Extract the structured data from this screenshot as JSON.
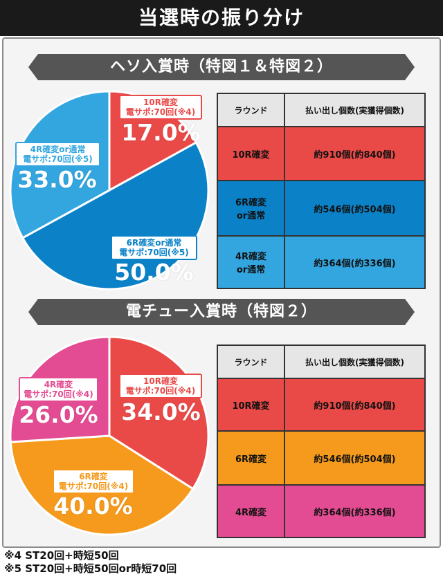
{
  "page_title": "当選時の振り分け",
  "colors": {
    "red": "#e94a48",
    "blue_dark": "#0b82c8",
    "blue_light": "#33a6e0",
    "pink": "#e34c92",
    "orange": "#f59a1c"
  },
  "section1": {
    "heading": "ヘソ入賞時（特図１＆特図２）",
    "table": {
      "headers": [
        "ラウンド",
        "払い出し個数(実獲得個数)"
      ],
      "rows": [
        {
          "round": [
            "10R確変"
          ],
          "payout": "約910個(約840個)"
        },
        {
          "round": [
            "6R確変",
            "or通常"
          ],
          "payout": "約546個(約504個)"
        },
        {
          "round": [
            "4R確変",
            "or通常"
          ],
          "payout": "約364個(約336個)"
        }
      ]
    }
  },
  "section2": {
    "heading": "電チュー入賞時（特図２）",
    "table": {
      "headers": [
        "ラウンド",
        "払い出し個数(実獲得個数)"
      ],
      "rows": [
        {
          "round": [
            "10R確変"
          ],
          "payout": "約910個(約840個)"
        },
        {
          "round": [
            "6R確変"
          ],
          "payout": "約546個(約504個)"
        },
        {
          "round": [
            "4R確変"
          ],
          "payout": "約364個(約336個)"
        }
      ]
    }
  },
  "chart_data": [
    {
      "type": "pie",
      "slices": [
        {
          "label": [
            "10R確変",
            "電サポ:70回(※4)"
          ],
          "value": 17.0,
          "display": "17.0%",
          "color": "#e94a48"
        },
        {
          "label": [
            "6R確変or通常",
            "電サポ:70回(※5)"
          ],
          "value": 50.0,
          "display": "50.0%",
          "color": "#0b82c8"
        },
        {
          "label": [
            "4R確変or通常",
            "電サポ:70回(※5)"
          ],
          "value": 33.0,
          "display": "33.0%",
          "color": "#33a6e0"
        }
      ]
    },
    {
      "type": "pie",
      "slices": [
        {
          "label": [
            "10R確変",
            "電サポ:70回(※4)"
          ],
          "value": 34.0,
          "display": "34.0%",
          "color": "#e94a48"
        },
        {
          "label": [
            "6R確変",
            "電サポ:70回(※4)"
          ],
          "value": 40.0,
          "display": "40.0%",
          "color": "#f59a1c"
        },
        {
          "label": [
            "4R確変",
            "電サポ:70回(※4)"
          ],
          "value": 26.0,
          "display": "26.0%",
          "color": "#e34c92"
        }
      ]
    }
  ],
  "notes": [
    "※4 ST20回+時短50回",
    "※5 ST20回+時短50回or時短70回"
  ]
}
